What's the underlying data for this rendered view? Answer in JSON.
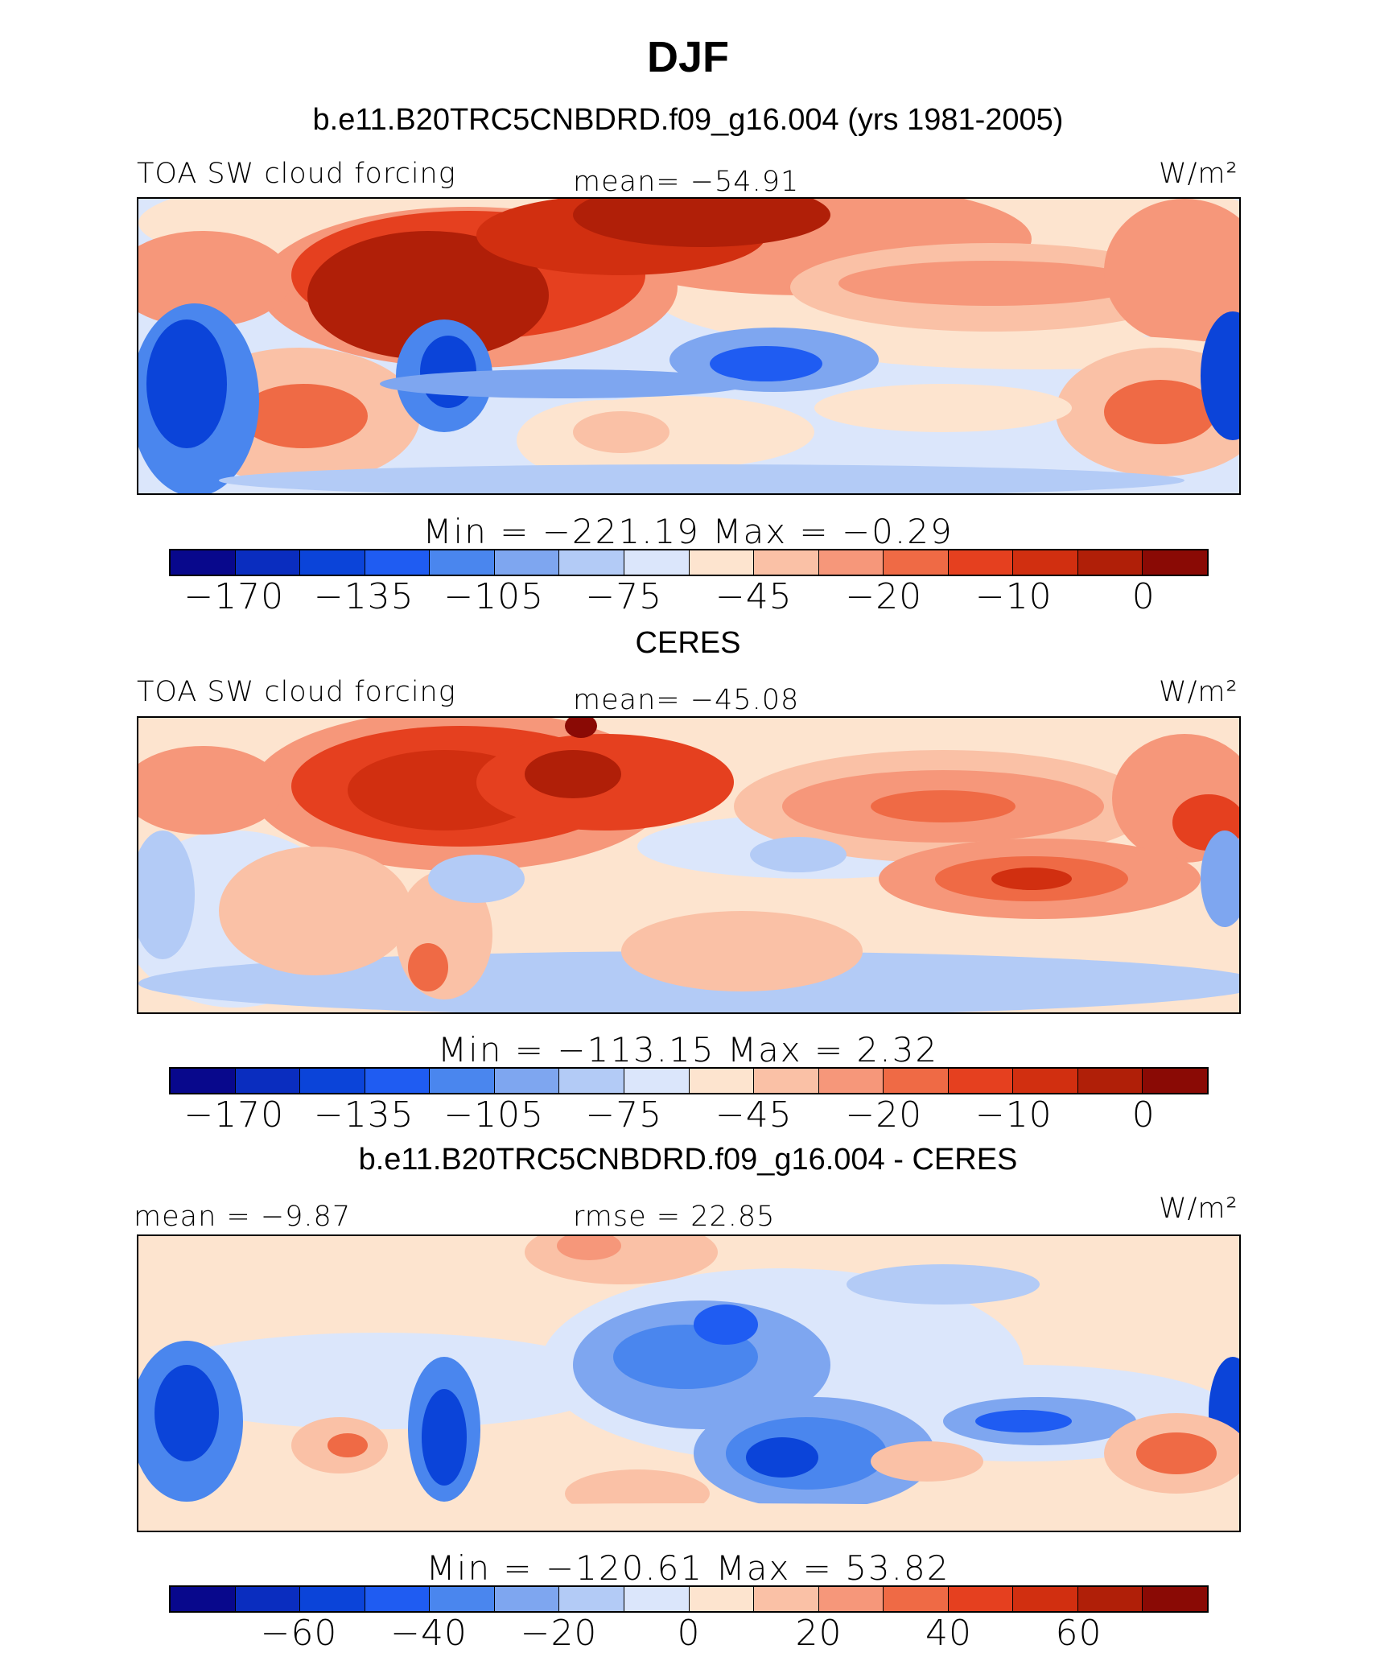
{
  "title": "DJF",
  "units": "W/m²",
  "palette": [
    "#08088c",
    "#0a2dbf",
    "#0b44d9",
    "#1f5cf2",
    "#4a86ee",
    "#7ea6f0",
    "#b3cbf6",
    "#dbe6fb",
    "#fde4cf",
    "#fac1a6",
    "#f6977a",
    "#ef6a45",
    "#e5401f",
    "#d12f10",
    "#b01f08",
    "#8a0a05"
  ],
  "panels": [
    {
      "title": "b.e11.B20TRC5CNBDRD.f09_g16.004 (yrs 1981-2005)",
      "left_label": "TOA SW cloud forcing",
      "center_label": "mean=  −54.91",
      "right_label": "W/m²",
      "minmax": "Min  =  −221.19  Max  =   −0.29",
      "cbar_ticks": [
        "−170",
        "−135",
        "−105",
        "−75",
        "−45",
        "−20",
        "−10",
        "0"
      ]
    },
    {
      "title": "CERES",
      "left_label": "TOA SW cloud forcing",
      "center_label": "mean=  −45.08",
      "right_label": "W/m²",
      "minmax": "Min  =  −113.15  Max  =     2.32",
      "cbar_ticks": [
        "−170",
        "−135",
        "−105",
        "−75",
        "−45",
        "−20",
        "−10",
        "0"
      ]
    },
    {
      "title": "b.e11.B20TRC5CNBDRD.f09_g16.004 - CERES",
      "left_label": "mean  =   −9.87",
      "center_label": "rmse  =   22.85",
      "right_label": "W/m²",
      "minmax": "Min  =  −120.61  Max  =   53.82",
      "cbar_ticks": [
        "−60",
        "−40",
        "−20",
        "0",
        "20",
        "40",
        "60"
      ]
    }
  ],
  "chart_data": {
    "type": "heatmap",
    "title": "DJF",
    "units": "W/m²",
    "maps": [
      {
        "name": "b.e11.B20TRC5CNBDRD.f09_g16.004 (yrs 1981-2005)",
        "field": "TOA SW cloud forcing",
        "mean": -54.91,
        "min": -221.19,
        "max": -0.29,
        "contour_levels": [
          -170,
          -155,
          -135,
          -120,
          -105,
          -90,
          -75,
          -60,
          -45,
          -30,
          -20,
          -15,
          -10,
          -5,
          0
        ]
      },
      {
        "name": "CERES",
        "field": "TOA SW cloud forcing",
        "mean": -45.08,
        "min": -113.15,
        "max": 2.32,
        "contour_levels": [
          -170,
          -155,
          -135,
          -120,
          -105,
          -90,
          -75,
          -60,
          -45,
          -30,
          -20,
          -15,
          -10,
          -5,
          0
        ]
      },
      {
        "name": "b.e11.B20TRC5CNBDRD.f09_g16.004 - CERES",
        "mean": -9.87,
        "rmse": 22.85,
        "min": -120.61,
        "max": 53.82,
        "contour_levels": [
          -70,
          -60,
          -50,
          -40,
          -30,
          -20,
          -10,
          0,
          10,
          20,
          30,
          40,
          50,
          60,
          70
        ]
      }
    ]
  }
}
